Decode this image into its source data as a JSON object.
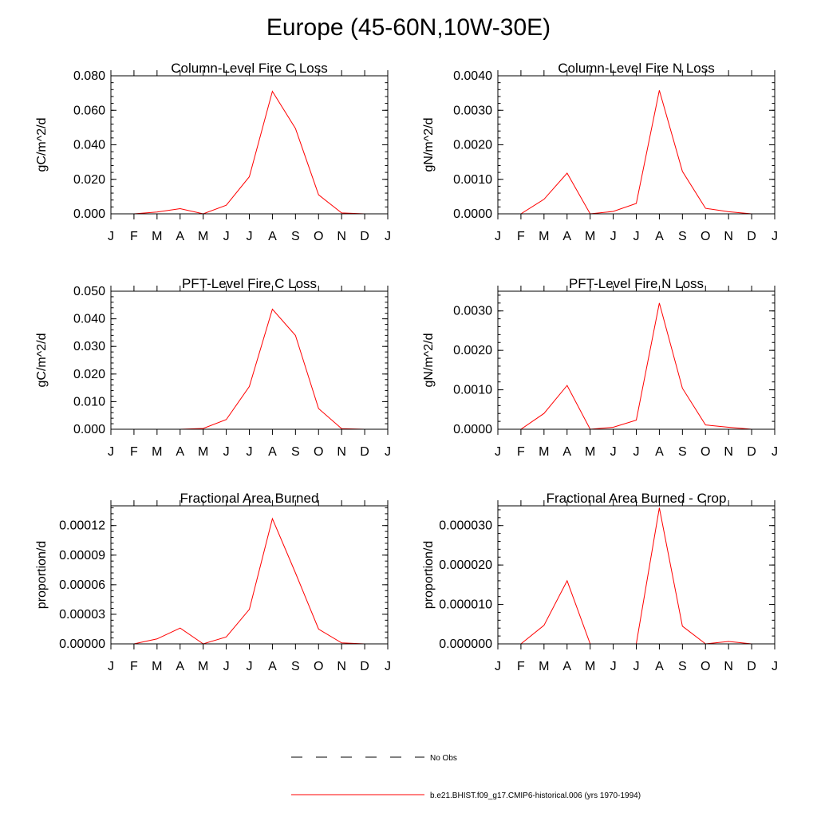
{
  "figure": {
    "title": "Europe (45-60N,10W-30E)"
  },
  "months": [
    "J",
    "F",
    "M",
    "A",
    "M",
    "J",
    "J",
    "A",
    "S",
    "O",
    "N",
    "D",
    "J"
  ],
  "chart_data": [
    {
      "type": "line",
      "title": "Column-Level Fire C Loss",
      "ylabel": "gC/m^2/d",
      "ylim": [
        0,
        0.08
      ],
      "yticks": [
        0,
        0.02,
        0.04,
        0.06,
        0.08
      ],
      "ytick_labels": [
        "0.000",
        "0.020",
        "0.040",
        "0.060",
        "0.080"
      ],
      "series": [
        {
          "name": "b.e21.BHIST.f09_g17.CMIP6-historical.006 (yrs 1970-1994)",
          "values": [
            0,
            0,
            0.001,
            0.003,
            0.0,
            0.005,
            0.0215,
            0.071,
            0.0495,
            0.011,
            0.0005,
            0,
            0
          ]
        }
      ]
    },
    {
      "type": "line",
      "title": "Column-Level Fire N Loss",
      "ylabel": "gN/m^2/d",
      "ylim": [
        0,
        0.004
      ],
      "yticks": [
        0,
        0.001,
        0.002,
        0.003,
        0.004
      ],
      "ytick_labels": [
        "0.0000",
        "0.0010",
        "0.0020",
        "0.0030",
        "0.0040"
      ],
      "series": [
        {
          "name": "b.e21.BHIST.f09_g17.CMIP6-historical.006 (yrs 1970-1994)",
          "values": [
            0,
            0,
            0.00042,
            0.00118,
            0.0,
            7e-05,
            0.0003,
            0.00358,
            0.00123,
            0.00016,
            6e-05,
            0,
            0
          ]
        }
      ]
    },
    {
      "type": "line",
      "title": "PFT-Level Fire C Loss",
      "ylabel": "gC/m^2/d",
      "ylim": [
        0,
        0.05
      ],
      "yticks": [
        0,
        0.01,
        0.02,
        0.03,
        0.04,
        0.05
      ],
      "ytick_labels": [
        "0.000",
        "0.010",
        "0.020",
        "0.030",
        "0.040",
        "0.050"
      ],
      "series": [
        {
          "name": "b.e21.BHIST.f09_g17.CMIP6-historical.006 (yrs 1970-1994)",
          "values": [
            0,
            0,
            0,
            0,
            0.0003,
            0.0035,
            0.0155,
            0.0435,
            0.034,
            0.0075,
            0.0002,
            0,
            0
          ]
        }
      ]
    },
    {
      "type": "line",
      "title": "PFT-Level Fire N Loss",
      "ylabel": "gN/m^2/d",
      "ylim": [
        0,
        0.0035
      ],
      "yticks": [
        0,
        0.001,
        0.002,
        0.003
      ],
      "ytick_labels": [
        "0.0000",
        "0.0010",
        "0.0020",
        "0.0030"
      ],
      "series": [
        {
          "name": "b.e21.BHIST.f09_g17.CMIP6-historical.006 (yrs 1970-1994)",
          "values": [
            0,
            0,
            0.0004,
            0.00111,
            0.0,
            5e-05,
            0.00023,
            0.0032,
            0.00104,
            0.00011,
            5e-05,
            0,
            0
          ]
        }
      ]
    },
    {
      "type": "line",
      "title": "Fractional Area Burned",
      "ylabel": "proportion/d",
      "ylim": [
        0,
        0.00014
      ],
      "yticks": [
        0,
        3e-05,
        6e-05,
        9e-05,
        0.00012
      ],
      "ytick_labels": [
        "0.00000",
        "0.00003",
        "0.00006",
        "0.00009",
        "0.00012"
      ],
      "series": [
        {
          "name": "b.e21.BHIST.f09_g17.CMIP6-historical.006 (yrs 1970-1994)",
          "values": [
            0,
            0,
            5e-06,
            1.6e-05,
            0.0,
            7e-06,
            3.5e-05,
            0.000127,
            7.2e-05,
            1.5e-05,
            1e-06,
            0,
            0
          ]
        }
      ]
    },
    {
      "type": "line",
      "title": "Fractional Area Burned - Crop",
      "ylabel": "proportion/d",
      "ylim": [
        0,
        3.5e-05
      ],
      "yticks": [
        0,
        1e-05,
        2e-05,
        3e-05
      ],
      "ytick_labels": [
        "0.000000",
        "0.000010",
        "0.000020",
        "0.000030"
      ],
      "series": [
        {
          "name": "b.e21.BHIST.f09_g17.CMIP6-historical.006 (yrs 1970-1994)",
          "values": [
            0,
            0,
            4.7e-06,
            1.6e-05,
            0.0,
            0.0,
            0.0,
            3.45e-05,
            4.5e-06,
            0.0,
            6e-07,
            0,
            0
          ]
        }
      ]
    }
  ],
  "legend": {
    "items": [
      {
        "label": "No Obs",
        "style": "dashed",
        "color": "#000000"
      },
      {
        "label": "b.e21.BHIST.f09_g17.CMIP6-historical.006 (yrs 1970-1994)",
        "style": "solid",
        "color": "#ff0000"
      }
    ]
  },
  "colors": {
    "series": "#ff0000",
    "axis": "#000000"
  }
}
